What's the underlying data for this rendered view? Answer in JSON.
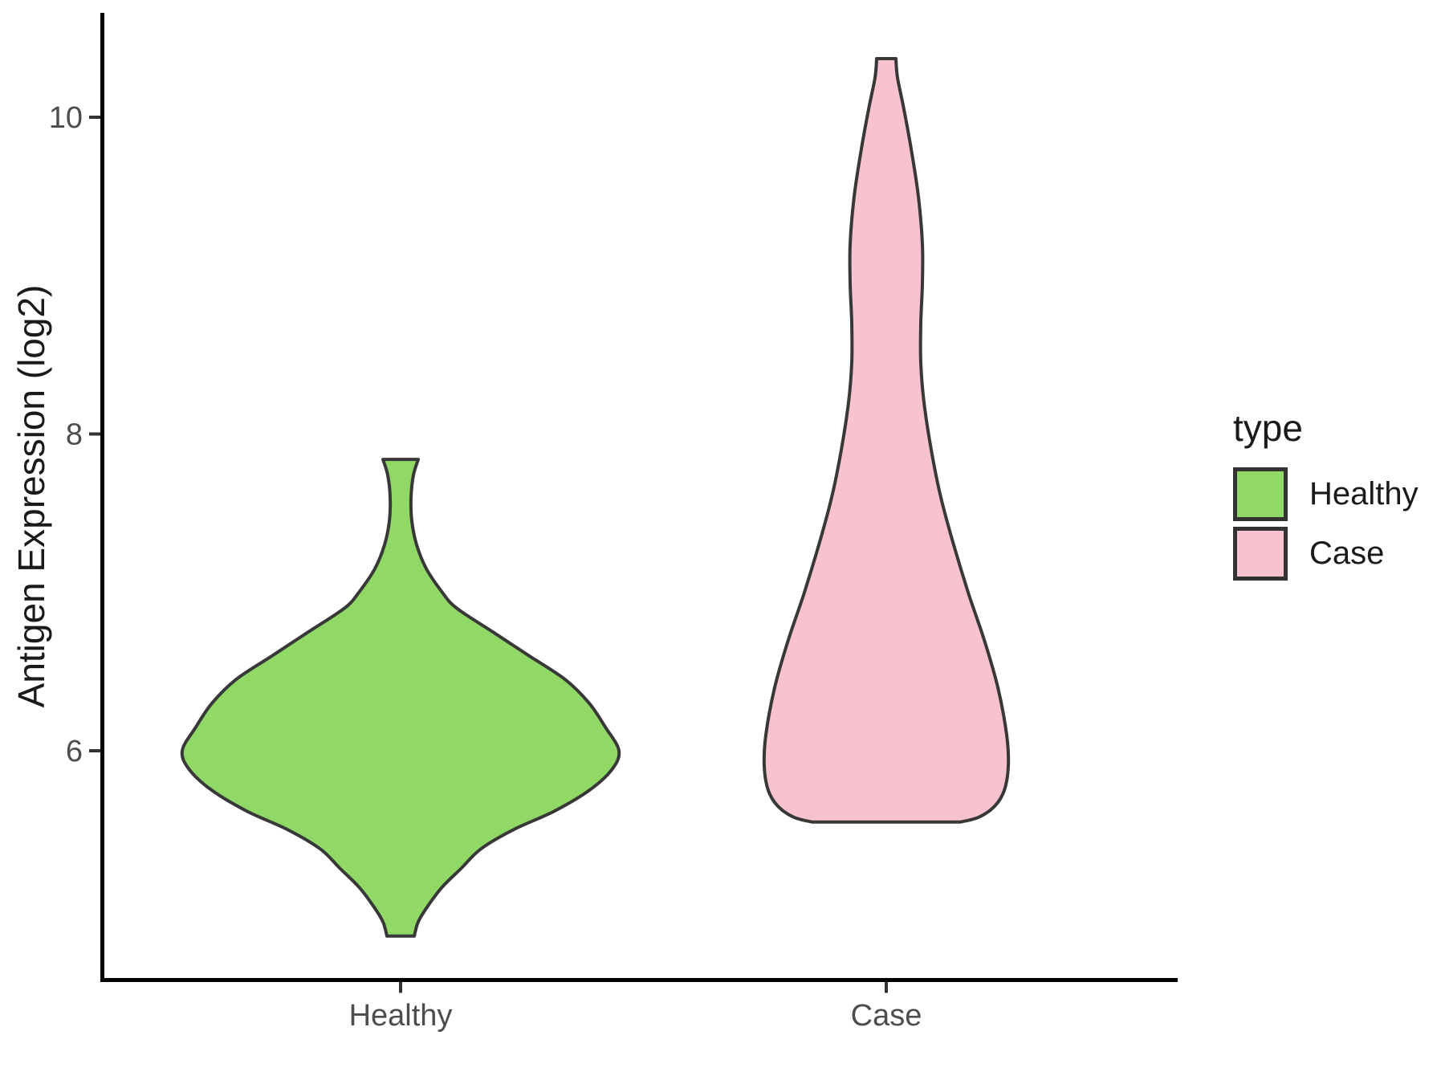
{
  "chart_data": {
    "type": "violin",
    "title": "",
    "categories": [
      "Healthy",
      "Case"
    ],
    "y_axis": {
      "title": "Antigen Expression (log2)",
      "ticks": [
        10,
        8,
        6
      ],
      "tick_labels": [
        "10",
        "8",
        "6"
      ],
      "range_shown": [
        4.5,
        10.65
      ],
      "grid": false
    },
    "x_axis": {
      "title": "",
      "tick_labels": [
        "Healthy",
        "Case"
      ]
    },
    "legend_position": "right-center",
    "profile_units": "[expression_value, density_halfwidth_px]",
    "series": [
      {
        "name": "Healthy",
        "fill": "#91D967",
        "summary": {
          "min": 4.83,
          "max": 7.84,
          "peak_density_at": 6.0,
          "shape": "diamond body with narrow capped neck at top and small flat tip at bottom"
        },
        "profile": [
          [
            7.84,
            22
          ],
          [
            7.74,
            16
          ],
          [
            7.6,
            13
          ],
          [
            7.45,
            14
          ],
          [
            7.3,
            20
          ],
          [
            7.15,
            32
          ],
          [
            7.0,
            52
          ],
          [
            6.9,
            70
          ],
          [
            6.75,
            115
          ],
          [
            6.6,
            160
          ],
          [
            6.45,
            205
          ],
          [
            6.3,
            235
          ],
          [
            6.15,
            255
          ],
          [
            6.0,
            272
          ],
          [
            5.88,
            263
          ],
          [
            5.75,
            235
          ],
          [
            5.62,
            192
          ],
          [
            5.5,
            140
          ],
          [
            5.38,
            100
          ],
          [
            5.26,
            76
          ],
          [
            5.14,
            52
          ],
          [
            5.02,
            34
          ],
          [
            4.92,
            22
          ],
          [
            4.83,
            17
          ]
        ]
      },
      {
        "name": "Case",
        "fill": "#F8C3CE",
        "summary": {
          "min": 5.55,
          "max": 10.37,
          "peak_density_at": 5.9,
          "shape": "tall narrow spout with slight bulge near 9, widening into bottom bulb truncated flat at minimum"
        },
        "profile": [
          [
            10.37,
            12
          ],
          [
            10.25,
            14
          ],
          [
            10.05,
            22
          ],
          [
            9.8,
            31
          ],
          [
            9.5,
            40
          ],
          [
            9.2,
            45
          ],
          [
            8.95,
            45
          ],
          [
            8.7,
            43
          ],
          [
            8.45,
            43
          ],
          [
            8.2,
            47
          ],
          [
            7.9,
            56
          ],
          [
            7.6,
            68
          ],
          [
            7.3,
            84
          ],
          [
            7.0,
            102
          ],
          [
            6.7,
            122
          ],
          [
            6.4,
            139
          ],
          [
            6.1,
            150
          ],
          [
            5.9,
            152
          ],
          [
            5.75,
            147
          ],
          [
            5.65,
            135
          ],
          [
            5.58,
            115
          ],
          [
            5.55,
            92
          ]
        ]
      }
    ]
  },
  "legend": {
    "title": "type",
    "items": [
      {
        "label": "Healthy",
        "color": "#91D967"
      },
      {
        "label": "Case",
        "color": "#F8C3CE"
      }
    ]
  }
}
